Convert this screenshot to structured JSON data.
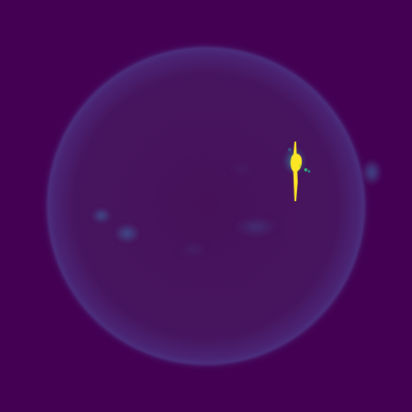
{
  "image": {
    "subject": "solar-disk",
    "colormap": "viridis",
    "colors": {
      "background": "#440154",
      "disk_faint": "#471464",
      "disk_limb": "#4a2a7a",
      "active_region": "#3b5a9a",
      "flare_core": "#fde725",
      "flare_mid": "#b5de2b",
      "flare_edge": "#35b779"
    },
    "features": [
      {
        "name": "bright-flare-region"
      },
      {
        "name": "east-limb-active-region"
      },
      {
        "name": "southwest-active-region"
      },
      {
        "name": "central-plage-region"
      }
    ]
  }
}
